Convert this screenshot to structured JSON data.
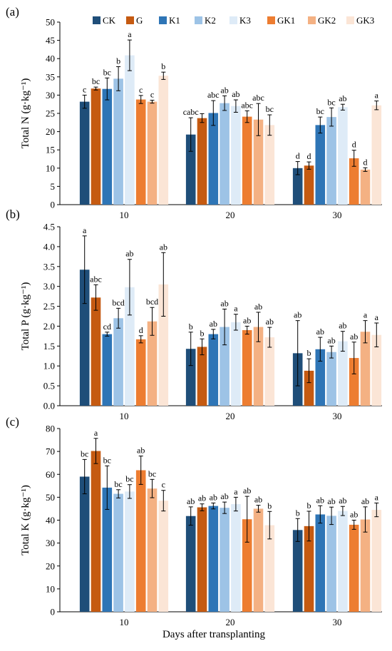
{
  "figure": {
    "xlabel": "Days after transplanting",
    "legend": [
      "CK",
      "G",
      "K1",
      "K2",
      "K3",
      "GK1",
      "GK2",
      "GK3"
    ],
    "colors": [
      "#1f4e79",
      "#c55a11",
      "#2e75b6",
      "#9dc3e6",
      "#deebf7",
      "#ed7d31",
      "#f4b183",
      "#fbe5d6"
    ],
    "categories": [
      "10",
      "20",
      "30"
    ]
  },
  "chart_data": [
    {
      "type": "bar",
      "panel": "(a)",
      "ylabel": "Total N (g·kg⁻¹)",
      "ylim": [
        0,
        50
      ],
      "yticks": [
        "0",
        "5",
        "10",
        "15",
        "20",
        "25",
        "30",
        "35",
        "40",
        "45",
        "50"
      ],
      "categories": [
        "10",
        "20",
        "30"
      ],
      "series": [
        {
          "name": "CK",
          "values": [
            28.2,
            19.2,
            10.0
          ],
          "errors": [
            1.8,
            4.6,
            1.8
          ],
          "letters": [
            "c",
            "cabc",
            "d"
          ]
        },
        {
          "name": "G",
          "values": [
            31.8,
            23.7,
            10.7
          ],
          "errors": [
            0.4,
            1.2,
            1.0
          ],
          "letters": [
            "bc",
            "",
            "d"
          ]
        },
        {
          "name": "K1",
          "values": [
            31.7,
            25.1,
            21.8
          ],
          "errors": [
            3.0,
            3.4,
            2.2
          ],
          "letters": [
            "bc",
            "abc",
            "bc"
          ]
        },
        {
          "name": "K2",
          "values": [
            34.5,
            27.8,
            24.0
          ],
          "errors": [
            3.3,
            2.0,
            2.5
          ],
          "letters": [
            "b",
            "ab",
            "bc"
          ]
        },
        {
          "name": "K3",
          "values": [
            40.9,
            27.0,
            26.7
          ],
          "errors": [
            4.2,
            1.7,
            0.8
          ],
          "letters": [
            "a",
            "ab",
            "ab"
          ]
        },
        {
          "name": "GK1",
          "values": [
            28.8,
            24.1,
            12.7
          ],
          "errors": [
            1.1,
            1.6,
            2.2
          ],
          "letters": [
            "c",
            "abc",
            "d"
          ]
        },
        {
          "name": "GK2",
          "values": [
            28.2,
            23.3,
            9.6
          ],
          "errors": [
            0.4,
            4.4,
            0.5
          ],
          "letters": [
            "c",
            "abc",
            "d"
          ]
        },
        {
          "name": "GK3",
          "values": [
            35.3,
            21.8,
            27.2
          ],
          "errors": [
            1.0,
            2.8,
            1.2
          ],
          "letters": [
            "b",
            "bc",
            "a"
          ]
        }
      ]
    },
    {
      "type": "bar",
      "panel": "(b)",
      "ylabel": "Total P (g·kg⁻¹)",
      "ylim": [
        0,
        4.5
      ],
      "yticks": [
        "0.0",
        "0.5",
        "1.0",
        "1.5",
        "2.0",
        "2.5",
        "3.0",
        "3.5",
        "4.0",
        "4.5"
      ],
      "categories": [
        "10",
        "20",
        "30"
      ],
      "series": [
        {
          "name": "CK",
          "values": [
            3.42,
            1.43,
            1.32
          ],
          "errors": [
            0.85,
            0.42,
            0.82
          ],
          "letters": [
            "a",
            "b",
            "ab"
          ]
        },
        {
          "name": "G",
          "values": [
            2.72,
            1.48,
            0.88
          ],
          "errors": [
            0.32,
            0.2,
            0.3
          ],
          "letters": [
            "abc",
            "b",
            "b"
          ]
        },
        {
          "name": "K1",
          "values": [
            1.8,
            1.8,
            1.42
          ],
          "errors": [
            0.05,
            0.12,
            0.3
          ],
          "letters": [
            "cd",
            "ab",
            "ab"
          ]
        },
        {
          "name": "K2",
          "values": [
            2.2,
            1.98,
            1.35
          ],
          "errors": [
            0.25,
            0.45,
            0.15
          ],
          "letters": [
            "bcd",
            "ab",
            "ab"
          ]
        },
        {
          "name": "K3",
          "values": [
            2.98,
            2.1,
            1.62
          ],
          "errors": [
            0.7,
            0.2,
            0.25
          ],
          "letters": [
            "ab",
            "a",
            "ab"
          ]
        },
        {
          "name": "GK1",
          "values": [
            1.67,
            1.9,
            1.2
          ],
          "errors": [
            0.09,
            0.1,
            0.4
          ],
          "letters": [
            "d",
            "ab",
            "ab"
          ]
        },
        {
          "name": "GK2",
          "values": [
            2.12,
            1.98,
            1.86
          ],
          "errors": [
            0.35,
            0.37,
            0.28
          ],
          "letters": [
            "bcd",
            "ab",
            "a"
          ]
        },
        {
          "name": "GK3",
          "values": [
            3.05,
            1.72,
            1.78
          ],
          "errors": [
            0.8,
            0.25,
            0.3
          ],
          "letters": [
            "ab",
            "ab",
            "a"
          ]
        }
      ]
    },
    {
      "type": "bar",
      "panel": "(c)",
      "ylabel": "Total K (g·kg⁻¹)",
      "ylim": [
        0,
        80
      ],
      "yticks": [
        "0",
        "10",
        "20",
        "30",
        "40",
        "50",
        "60",
        "70",
        "80"
      ],
      "categories": [
        "10",
        "20",
        "30"
      ],
      "series": [
        {
          "name": "CK",
          "values": [
            59.0,
            41.8,
            35.7
          ],
          "errors": [
            7.5,
            4.0,
            5.0
          ],
          "letters": [
            "bc",
            "ab",
            "b"
          ]
        },
        {
          "name": "G",
          "values": [
            70.2,
            45.6,
            37.4
          ],
          "errors": [
            5.5,
            1.5,
            6.5
          ],
          "letters": [
            "a",
            "ab",
            "b"
          ]
        },
        {
          "name": "K1",
          "values": [
            54.2,
            46.2,
            42.5
          ],
          "errors": [
            9.5,
            1.3,
            3.8
          ],
          "letters": [
            "bc",
            "ab",
            "ab"
          ]
        },
        {
          "name": "K2",
          "values": [
            51.5,
            45.4,
            41.9
          ],
          "errors": [
            1.8,
            2.5,
            3.8
          ],
          "letters": [
            "bc",
            "ab",
            "ab"
          ]
        },
        {
          "name": "K3",
          "values": [
            52.5,
            47.0,
            44.0
          ],
          "errors": [
            3.0,
            3.0,
            2.0
          ],
          "letters": [
            "bc",
            "a",
            "ab"
          ]
        },
        {
          "name": "GK1",
          "values": [
            61.8,
            40.4,
            38.0
          ],
          "errors": [
            6.2,
            10.0,
            2.0
          ],
          "letters": [
            "ab",
            "ab",
            "ab"
          ]
        },
        {
          "name": "GK2",
          "values": [
            53.8,
            45.0,
            40.3
          ],
          "errors": [
            4.0,
            1.5,
            5.5
          ],
          "letters": [
            "bc",
            "ab",
            "ab"
          ]
        },
        {
          "name": "GK3",
          "values": [
            48.5,
            37.8,
            44.5
          ],
          "errors": [
            4.5,
            6.0,
            3.0
          ],
          "letters": [
            "c",
            "b",
            "a"
          ]
        }
      ]
    }
  ]
}
